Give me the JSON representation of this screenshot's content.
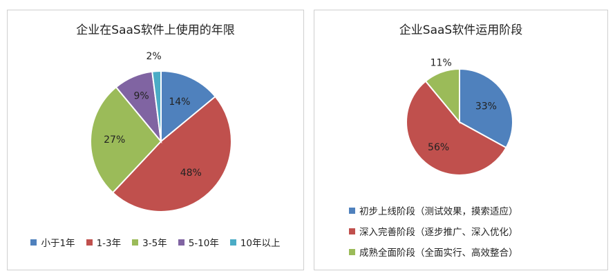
{
  "chart_data": [
    {
      "type": "pie",
      "title": "企业在SaaS软件上使用的年限",
      "legend_position": "bottom",
      "slices": [
        {
          "name": "小于1年",
          "value": 14,
          "label": "14%",
          "color": "#4f81bd"
        },
        {
          "name": "1-3年",
          "value": 48,
          "label": "48%",
          "color": "#c0504d"
        },
        {
          "name": "3-5年",
          "value": 27,
          "label": "27%",
          "color": "#9bbb59"
        },
        {
          "name": "5-10年",
          "value": 9,
          "label": "9%",
          "color": "#8064a2"
        },
        {
          "name": "10年以上",
          "value": 2,
          "label": "2%",
          "color": "#4bacc6"
        }
      ]
    },
    {
      "type": "pie",
      "title": "企业SaaS软件运用阶段",
      "legend_position": "bottom",
      "slices": [
        {
          "name": "初步上线阶段（测试效果，摸索适应）",
          "value": 33,
          "label": "33%",
          "color": "#4f81bd"
        },
        {
          "name": "深入完善阶段（逐步推广、深入优化）",
          "value": 56,
          "label": "56%",
          "color": "#c0504d"
        },
        {
          "name": "成熟全面阶段（全面实行、高效整合）",
          "value": 11,
          "label": "11%",
          "color": "#9bbb59"
        }
      ]
    }
  ]
}
